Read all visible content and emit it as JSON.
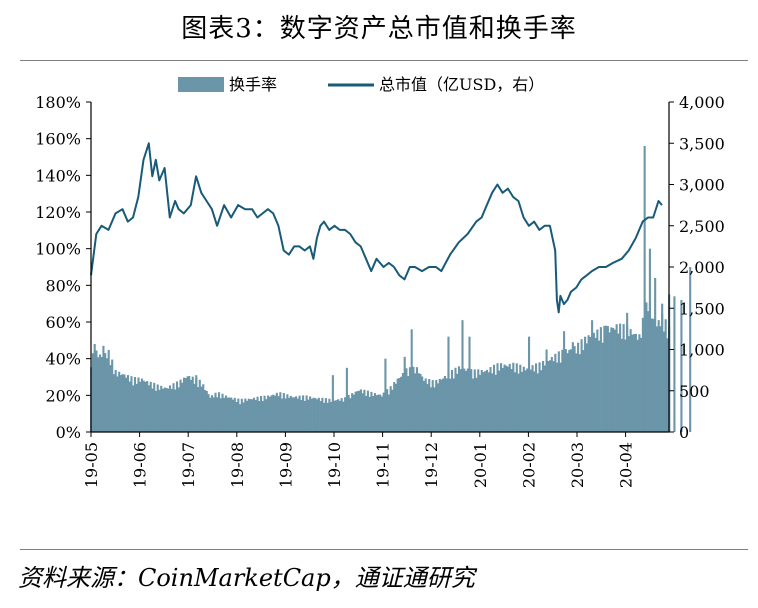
{
  "header": {
    "title": "图表3：数字资产总市值和换手率"
  },
  "footer": {
    "source": "资料来源：CoinMarketCap，通证通研究"
  },
  "colors": {
    "bar": "#6b95a8",
    "line": "#185a78",
    "rule": "#7f7f7f"
  },
  "chart_data": {
    "type": "bar",
    "title": "",
    "legend": {
      "position": "top",
      "entries": [
        "换手率",
        "总市值（亿USD，右）"
      ]
    },
    "x_ticks": [
      "19-05",
      "19-06",
      "19-07",
      "19-08",
      "19-09",
      "19-10",
      "19-11",
      "19-12",
      "20-01",
      "20-02",
      "20-03",
      "20-04"
    ],
    "y_left": {
      "min": 0,
      "max": 180,
      "ticks": [
        "0%",
        "20%",
        "40%",
        "60%",
        "80%",
        "100%",
        "120%",
        "140%",
        "160%",
        "180%"
      ]
    },
    "y_right": {
      "min": 0,
      "max": 4000,
      "ticks": [
        "0",
        "500",
        "1,000",
        "1,500",
        "2,000",
        "2,500",
        "3,000",
        "3,500",
        "4,000"
      ]
    },
    "grid": false,
    "series": [
      {
        "name": "换手率",
        "type": "bar",
        "axis": "left",
        "unit": "%",
        "points": [
          [
            0,
            42
          ],
          [
            3,
            45
          ],
          [
            6,
            43
          ],
          [
            10,
            45
          ],
          [
            14,
            34
          ],
          [
            18,
            33
          ],
          [
            24,
            30
          ],
          [
            29,
            30
          ],
          [
            33,
            28
          ],
          [
            38,
            26
          ],
          [
            43,
            25
          ],
          [
            50,
            28
          ],
          [
            55,
            32
          ],
          [
            59,
            30
          ],
          [
            63,
            28
          ],
          [
            68,
            20
          ],
          [
            72,
            22
          ],
          [
            78,
            20
          ],
          [
            85,
            18
          ],
          [
            92,
            19
          ],
          [
            100,
            20
          ],
          [
            107,
            22
          ],
          [
            115,
            20
          ],
          [
            123,
            20
          ],
          [
            130,
            19
          ],
          [
            138,
            18
          ],
          [
            145,
            19
          ],
          [
            153,
            24
          ],
          [
            160,
            22
          ],
          [
            166,
            21
          ],
          [
            171,
            25
          ],
          [
            175,
            30
          ],
          [
            180,
            35
          ],
          [
            186,
            36
          ],
          [
            190,
            30
          ],
          [
            196,
            28
          ],
          [
            203,
            32
          ],
          [
            211,
            37
          ],
          [
            218,
            34
          ],
          [
            226,
            35
          ],
          [
            233,
            38
          ],
          [
            241,
            38
          ],
          [
            248,
            36
          ],
          [
            256,
            38
          ],
          [
            263,
            42
          ],
          [
            271,
            46
          ],
          [
            277,
            48
          ],
          [
            285,
            55
          ],
          [
            293,
            58
          ],
          [
            300,
            60
          ],
          [
            307,
            58
          ],
          [
            313,
            54
          ],
          [
            318,
            75
          ],
          [
            322,
            60
          ],
          [
            326,
            65
          ],
          [
            330,
            58
          ],
          [
            335,
            62
          ],
          [
            340,
            60
          ],
          [
            345,
            55
          ]
        ],
        "spikes": [
          [
            2,
            48
          ],
          [
            7,
            47
          ],
          [
            60,
            31
          ],
          [
            138,
            31
          ],
          [
            146,
            35
          ],
          [
            168,
            40
          ],
          [
            179,
            41
          ],
          [
            183,
            56
          ],
          [
            204,
            52
          ],
          [
            212,
            61
          ],
          [
            216,
            52
          ],
          [
            250,
            52
          ],
          [
            260,
            45
          ],
          [
            270,
            55
          ],
          [
            275,
            49
          ],
          [
            286,
            61
          ],
          [
            294,
            58
          ],
          [
            306,
            65
          ],
          [
            316,
            156
          ],
          [
            319,
            100
          ],
          [
            322,
            84
          ],
          [
            326,
            70
          ],
          [
            330,
            75
          ],
          [
            333,
            74
          ],
          [
            337,
            72
          ],
          [
            342,
            90
          ]
        ]
      },
      {
        "name": "总市值（亿USD，右）",
        "type": "line",
        "axis": "right",
        "unit": "亿USD",
        "points": [
          [
            0,
            1900
          ],
          [
            3,
            2400
          ],
          [
            6,
            2500
          ],
          [
            10,
            2450
          ],
          [
            14,
            2650
          ],
          [
            18,
            2700
          ],
          [
            21,
            2550
          ],
          [
            24,
            2600
          ],
          [
            27,
            2850
          ],
          [
            30,
            3300
          ],
          [
            33,
            3500
          ],
          [
            35,
            3100
          ],
          [
            37,
            3300
          ],
          [
            39,
            3050
          ],
          [
            42,
            3200
          ],
          [
            45,
            2600
          ],
          [
            48,
            2800
          ],
          [
            50,
            2700
          ],
          [
            53,
            2650
          ],
          [
            57,
            2750
          ],
          [
            60,
            3100
          ],
          [
            63,
            2900
          ],
          [
            66,
            2800
          ],
          [
            69,
            2700
          ],
          [
            72,
            2500
          ],
          [
            76,
            2750
          ],
          [
            80,
            2600
          ],
          [
            84,
            2750
          ],
          [
            88,
            2700
          ],
          [
            92,
            2700
          ],
          [
            95,
            2600
          ],
          [
            98,
            2650
          ],
          [
            101,
            2700
          ],
          [
            104,
            2650
          ],
          [
            107,
            2500
          ],
          [
            110,
            2200
          ],
          [
            113,
            2150
          ],
          [
            116,
            2250
          ],
          [
            119,
            2250
          ],
          [
            122,
            2200
          ],
          [
            125,
            2250
          ],
          [
            127,
            2100
          ],
          [
            129,
            2350
          ],
          [
            131,
            2500
          ],
          [
            133,
            2550
          ],
          [
            136,
            2450
          ],
          [
            139,
            2500
          ],
          [
            142,
            2450
          ],
          [
            145,
            2450
          ],
          [
            148,
            2400
          ],
          [
            151,
            2300
          ],
          [
            154,
            2250
          ],
          [
            157,
            2100
          ],
          [
            160,
            1950
          ],
          [
            163,
            2100
          ],
          [
            167,
            2000
          ],
          [
            170,
            2050
          ],
          [
            173,
            2000
          ],
          [
            176,
            1900
          ],
          [
            179,
            1850
          ],
          [
            182,
            2000
          ],
          [
            185,
            2000
          ],
          [
            189,
            1950
          ],
          [
            193,
            2000
          ],
          [
            197,
            2000
          ],
          [
            200,
            1950
          ],
          [
            205,
            2150
          ],
          [
            210,
            2300
          ],
          [
            215,
            2400
          ],
          [
            220,
            2550
          ],
          [
            223,
            2600
          ],
          [
            226,
            2750
          ],
          [
            229,
            2900
          ],
          [
            232,
            3000
          ],
          [
            235,
            2900
          ],
          [
            238,
            2950
          ],
          [
            241,
            2850
          ],
          [
            244,
            2800
          ],
          [
            247,
            2600
          ],
          [
            250,
            2500
          ],
          [
            253,
            2550
          ],
          [
            256,
            2450
          ],
          [
            259,
            2500
          ],
          [
            262,
            2500
          ],
          [
            265,
            2200
          ],
          [
            266,
            1600
          ],
          [
            267,
            1450
          ],
          [
            268,
            1650
          ],
          [
            270,
            1550
          ],
          [
            272,
            1600
          ],
          [
            274,
            1700
          ],
          [
            277,
            1750
          ],
          [
            280,
            1850
          ],
          [
            283,
            1900
          ],
          [
            286,
            1950
          ],
          [
            290,
            2000
          ],
          [
            294,
            2000
          ],
          [
            298,
            2050
          ],
          [
            303,
            2100
          ],
          [
            307,
            2200
          ],
          [
            311,
            2350
          ],
          [
            315,
            2550
          ],
          [
            318,
            2600
          ],
          [
            321,
            2600
          ],
          [
            324,
            2800
          ],
          [
            326,
            2750
          ]
        ]
      }
    ]
  }
}
